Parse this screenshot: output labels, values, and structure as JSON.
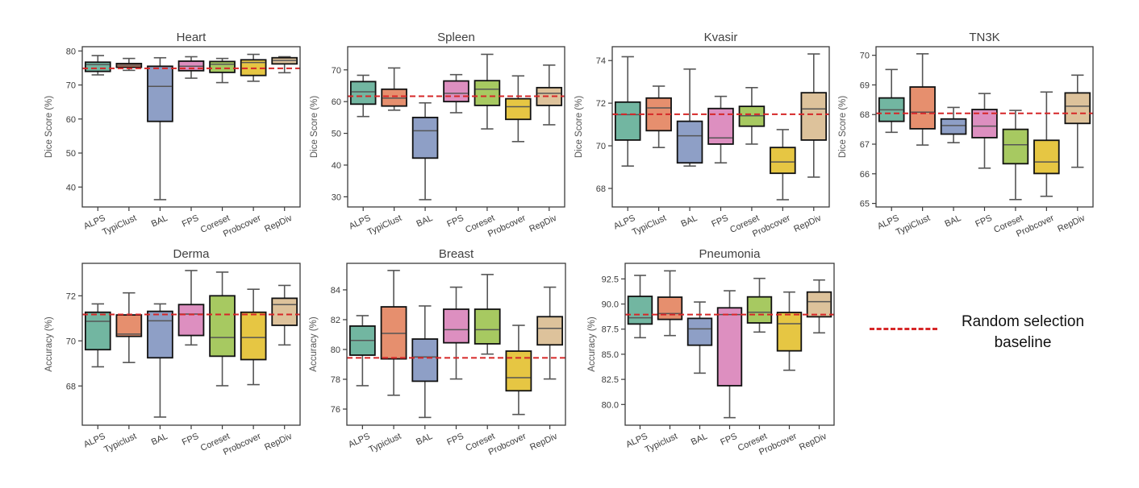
{
  "legend": {
    "line_label_1": "Random selection",
    "line_label_2": "baseline",
    "line_color": "#d62728"
  },
  "palette": {
    "ALPS": "#72b6a1",
    "TypiClust": "#e68f6e",
    "BAL": "#8e9fc6",
    "FPS": "#dd8fc0",
    "Coreset": "#a7c961",
    "Probcover": "#e6c643",
    "RepDiv": "#ddc29b"
  },
  "chart_data": [
    {
      "type": "box",
      "title": "Heart",
      "ylabel": "Dice Score (%)",
      "ylim": [
        34.15,
        81.25
      ],
      "yticks": [
        40,
        50,
        60,
        70,
        80
      ],
      "ytick_labels": [
        "40",
        "50",
        "60",
        "70",
        "80"
      ],
      "categories": [
        "ALPS",
        "TypiClust",
        "BAL",
        "FPS",
        "Coreset",
        "Probcover",
        "RepDiv"
      ],
      "baseline": 74.9,
      "boxes": [
        {
          "whislo": 72.97,
          "q1": 73.99,
          "med": 75.98,
          "q3": 76.7,
          "whishi": 78.65
        },
        {
          "whislo": 74.3,
          "q1": 75.2,
          "med": 75.8,
          "q3": 76.3,
          "whishi": 77.8
        },
        {
          "whislo": 36.3,
          "q1": 59.3,
          "med": 69.6,
          "q3": 75.5,
          "whishi": 78.0
        },
        {
          "whislo": 72.0,
          "q1": 74.2,
          "med": 75.5,
          "q3": 77.0,
          "whishi": 78.3
        },
        {
          "whislo": 70.7,
          "q1": 73.7,
          "med": 76.1,
          "q3": 76.9,
          "whishi": 77.8
        },
        {
          "whislo": 71.1,
          "q1": 72.8,
          "med": 76.6,
          "q3": 77.4,
          "whishi": 79.0
        },
        {
          "whislo": 73.6,
          "q1": 76.2,
          "med": 77.2,
          "q3": 78.0,
          "whishi": 78.3
        }
      ]
    },
    {
      "type": "box",
      "title": "Spleen",
      "ylabel": "Dice Score (%)",
      "ylim": [
        26.8,
        77.3
      ],
      "yticks": [
        30,
        40,
        50,
        60,
        70
      ],
      "ytick_labels": [
        "30",
        "40",
        "50",
        "60",
        "70"
      ],
      "categories": [
        "ALPS",
        "TypiClust",
        "BAL",
        "FPS",
        "Coreset",
        "Probcover",
        "RepDiv"
      ],
      "baseline": 61.7,
      "boxes": [
        {
          "whislo": 55.3,
          "q1": 59.2,
          "med": 63.1,
          "q3": 66.3,
          "whishi": 68.3
        },
        {
          "whislo": 57.3,
          "q1": 58.6,
          "med": 61.1,
          "q3": 63.9,
          "whishi": 70.6
        },
        {
          "whislo": 29.1,
          "q1": 42.2,
          "med": 50.8,
          "q3": 55.0,
          "whishi": 59.6
        },
        {
          "whislo": 56.5,
          "q1": 60.0,
          "med": 62.6,
          "q3": 66.5,
          "whishi": 68.5
        },
        {
          "whislo": 51.4,
          "q1": 58.8,
          "med": 63.9,
          "q3": 66.6,
          "whishi": 74.9
        },
        {
          "whislo": 47.4,
          "q1": 54.4,
          "med": 58.4,
          "q3": 60.9,
          "whishi": 68.1
        },
        {
          "whislo": 52.7,
          "q1": 58.8,
          "med": 62.6,
          "q3": 64.4,
          "whishi": 71.5
        }
      ]
    },
    {
      "type": "box",
      "title": "Kvasir",
      "ylabel": "Dice Score (%)",
      "ylim": [
        67.13,
        74.65
      ],
      "yticks": [
        68,
        70,
        72,
        74
      ],
      "ytick_labels": [
        "68",
        "70",
        "72",
        "74"
      ],
      "categories": [
        "ALPS",
        "TypiClust",
        "BAL",
        "FPS",
        "Coreset",
        "Probcover",
        "RepDiv"
      ],
      "baseline": 71.48,
      "boxes": [
        {
          "whislo": 69.05,
          "q1": 70.27,
          "med": 71.46,
          "q3": 72.05,
          "whishi": 74.18
        },
        {
          "whislo": 69.92,
          "q1": 70.71,
          "med": 71.78,
          "q3": 72.24,
          "whishi": 72.8
        },
        {
          "whislo": 69.05,
          "q1": 69.2,
          "med": 70.47,
          "q3": 71.15,
          "whishi": 73.6
        },
        {
          "whislo": 69.2,
          "q1": 70.08,
          "med": 70.37,
          "q3": 71.75,
          "whishi": 72.32
        },
        {
          "whislo": 70.08,
          "q1": 70.92,
          "med": 71.41,
          "q3": 71.85,
          "whishi": 72.73
        },
        {
          "whislo": 67.47,
          "q1": 68.71,
          "med": 69.24,
          "q3": 69.92,
          "whishi": 70.76
        },
        {
          "whislo": 68.53,
          "q1": 70.27,
          "med": 71.73,
          "q3": 72.49,
          "whishi": 74.31
        }
      ]
    },
    {
      "type": "box",
      "title": "TN3K",
      "ylabel": "Dice Score (%)",
      "ylim": [
        64.88,
        70.29
      ],
      "yticks": [
        65,
        66,
        67,
        68,
        69,
        70
      ],
      "ytick_labels": [
        "65",
        "66",
        "67",
        "68",
        "69",
        "70"
      ],
      "categories": [
        "ALPS",
        "TypiClust",
        "BAL",
        "FPS",
        "Coreset",
        "Probcover",
        "RepDiv"
      ],
      "baseline": 68.04,
      "boxes": [
        {
          "whislo": 67.4,
          "q1": 67.77,
          "med": 68.16,
          "q3": 68.56,
          "whishi": 69.52
        },
        {
          "whislo": 66.97,
          "q1": 67.52,
          "med": 68.08,
          "q3": 68.93,
          "whishi": 70.05
        },
        {
          "whislo": 67.05,
          "q1": 67.34,
          "med": 67.63,
          "q3": 67.85,
          "whishi": 68.24
        },
        {
          "whislo": 66.19,
          "q1": 67.22,
          "med": 67.61,
          "q3": 68.17,
          "whishi": 68.71
        },
        {
          "whislo": 65.13,
          "q1": 66.34,
          "med": 66.98,
          "q3": 67.5,
          "whishi": 68.14
        },
        {
          "whislo": 65.24,
          "q1": 66.01,
          "med": 66.4,
          "q3": 67.13,
          "whishi": 68.76
        },
        {
          "whislo": 66.22,
          "q1": 67.7,
          "med": 68.28,
          "q3": 68.73,
          "whishi": 69.33
        }
      ]
    },
    {
      "type": "box",
      "title": "Derma",
      "ylabel": "Accuracy (%)",
      "ylim": [
        66.26,
        73.44
      ],
      "yticks": [
        68,
        70,
        72
      ],
      "ytick_labels": [
        "68",
        "70",
        "72"
      ],
      "categories": [
        "ALPS",
        "Typiclust",
        "BAL",
        "FPS",
        "Coreset",
        "Probcover",
        "RepDiv"
      ],
      "baseline": 71.17,
      "boxes": [
        {
          "whislo": 68.85,
          "q1": 69.61,
          "med": 70.87,
          "q3": 71.27,
          "whishi": 71.64
        },
        {
          "whislo": 69.04,
          "q1": 70.2,
          "med": 70.3,
          "q3": 71.15,
          "whishi": 72.13
        },
        {
          "whislo": 66.62,
          "q1": 69.25,
          "med": 70.89,
          "q3": 71.31,
          "whishi": 71.64
        },
        {
          "whislo": 69.82,
          "q1": 70.24,
          "med": 71.19,
          "q3": 71.61,
          "whishi": 73.12
        },
        {
          "whislo": 68.01,
          "q1": 69.32,
          "med": 70.15,
          "q3": 72.0,
          "whishi": 73.05
        },
        {
          "whislo": 68.06,
          "q1": 69.17,
          "med": 70.15,
          "q3": 71.27,
          "whishi": 72.29
        },
        {
          "whislo": 69.82,
          "q1": 70.69,
          "med": 71.61,
          "q3": 71.89,
          "whishi": 72.46
        }
      ]
    },
    {
      "type": "box",
      "title": "Breast",
      "ylabel": "Accuracy (%)",
      "ylim": [
        74.92,
        85.78
      ],
      "yticks": [
        76,
        78,
        80,
        82,
        84
      ],
      "ytick_labels": [
        "76",
        "78",
        "80",
        "82",
        "84"
      ],
      "categories": [
        "ALPS",
        "Typiclust",
        "BAL",
        "FPS",
        "Coreset",
        "Probcover",
        "RepDiv"
      ],
      "baseline": 79.44,
      "boxes": [
        {
          "whislo": 77.57,
          "q1": 79.62,
          "med": 80.61,
          "q3": 81.57,
          "whishi": 82.27
        },
        {
          "whislo": 76.93,
          "q1": 79.37,
          "med": 81.08,
          "q3": 82.86,
          "whishi": 85.3
        },
        {
          "whislo": 75.44,
          "q1": 77.87,
          "med": 79.5,
          "q3": 80.7,
          "whishi": 82.92
        },
        {
          "whislo": 78.02,
          "q1": 80.45,
          "med": 81.33,
          "q3": 82.7,
          "whishi": 84.18
        },
        {
          "whislo": 79.69,
          "q1": 80.38,
          "med": 81.33,
          "q3": 82.7,
          "whishi": 85.03
        },
        {
          "whislo": 75.64,
          "q1": 77.23,
          "med": 78.11,
          "q3": 79.89,
          "whishi": 81.62
        },
        {
          "whislo": 78.02,
          "q1": 80.31,
          "med": 81.42,
          "q3": 82.2,
          "whishi": 84.18
        }
      ]
    },
    {
      "type": "box",
      "title": "Pneumonia",
      "ylabel": "Accuracy (%)",
      "ylim": [
        77.94,
        94.05
      ],
      "yticks": [
        80.0,
        82.5,
        85.0,
        87.5,
        90.0,
        92.5
      ],
      "ytick_labels": [
        "80.0",
        "82.5",
        "85.0",
        "87.5",
        "90.0",
        "92.5"
      ],
      "categories": [
        "ALPS",
        "Typiclust",
        "BAL",
        "FPS",
        "Coreset",
        "Probcover",
        "RepDiv"
      ],
      "baseline": 88.95,
      "boxes": [
        {
          "whislo": 86.65,
          "q1": 88.01,
          "med": 88.63,
          "q3": 90.76,
          "whishi": 92.85
        },
        {
          "whislo": 86.86,
          "q1": 88.47,
          "med": 89.05,
          "q3": 90.68,
          "whishi": 93.3
        },
        {
          "whislo": 83.12,
          "q1": 85.9,
          "med": 87.53,
          "q3": 88.57,
          "whishi": 90.2
        },
        {
          "whislo": 78.69,
          "q1": 81.87,
          "med": 88.95,
          "q3": 89.62,
          "whishi": 91.32
        },
        {
          "whislo": 87.21,
          "q1": 88.12,
          "med": 89.18,
          "q3": 90.71,
          "whishi": 92.55
        },
        {
          "whislo": 83.41,
          "q1": 85.34,
          "med": 88.04,
          "q3": 89.16,
          "whishi": 91.19
        },
        {
          "whislo": 87.13,
          "q1": 88.73,
          "med": 90.23,
          "q3": 91.19,
          "whishi": 92.39
        }
      ]
    }
  ]
}
